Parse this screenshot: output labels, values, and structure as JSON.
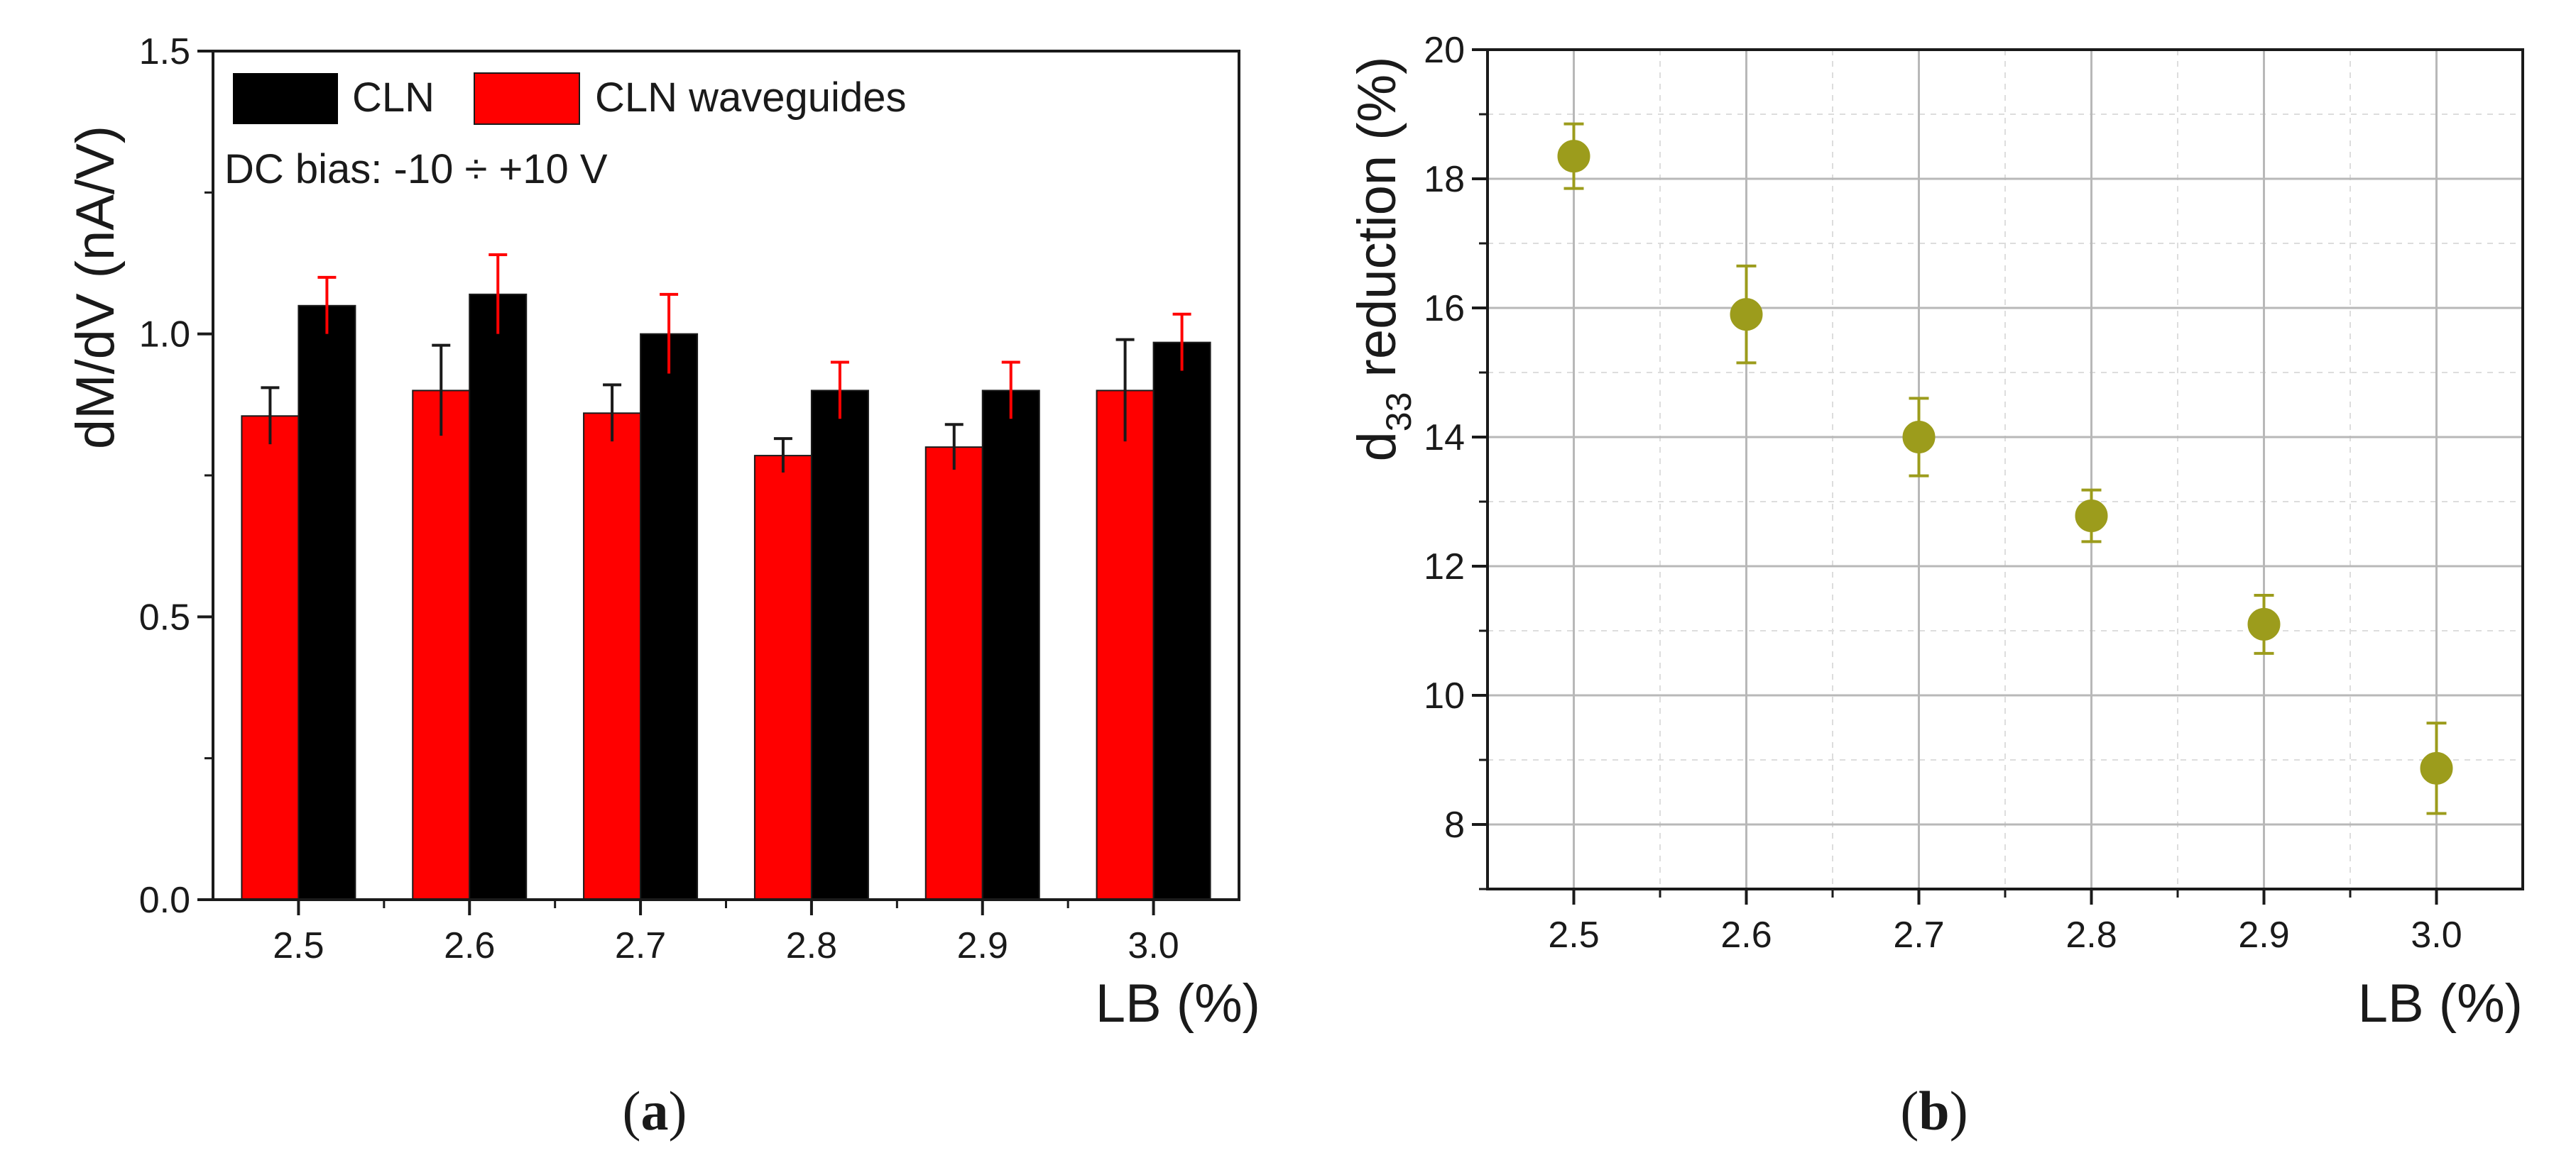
{
  "chart_data": [
    {
      "id": "a",
      "type": "bar",
      "categories": [
        "2.5",
        "2.6",
        "2.7",
        "2.8",
        "2.9",
        "3.0"
      ],
      "series": [
        {
          "name": "CLN waveguides",
          "color": "#ff0000",
          "error_color": "#1a1a1a",
          "values": [
            0.855,
            0.9,
            0.86,
            0.785,
            0.8,
            0.9
          ],
          "errors": [
            0.05,
            0.08,
            0.05,
            0.03,
            0.04,
            0.09
          ]
        },
        {
          "name": "CLN",
          "color": "#000000",
          "error_color": "#ff0000",
          "values": [
            1.05,
            1.07,
            1.0,
            0.9,
            0.9,
            0.985
          ],
          "errors": [
            0.05,
            0.07,
            0.07,
            0.05,
            0.05,
            0.05
          ]
        }
      ],
      "ylim": [
        0,
        1.5
      ],
      "yticks": [
        "0.0",
        "0.5",
        "1.0",
        "1.5"
      ],
      "ylabel": "dM/dV (nA/V)",
      "xlabel": "LB (%)",
      "annotation": "DC bias: -10 ÷ +10 V",
      "legend": [
        {
          "label": "CLN",
          "color": "#000000"
        },
        {
          "label": "CLN waveguides",
          "color": "#ff0000"
        }
      ],
      "panel_label": "a"
    },
    {
      "id": "b",
      "type": "scatter",
      "x": [
        2.5,
        2.6,
        2.7,
        2.8,
        2.9,
        3.0
      ],
      "xticks": [
        "2.5",
        "2.6",
        "2.7",
        "2.8",
        "2.9",
        "3.0"
      ],
      "y": [
        18.35,
        15.9,
        14.0,
        12.78,
        11.1,
        8.87
      ],
      "errors": [
        0.5,
        0.75,
        0.6,
        0.4,
        0.45,
        0.7
      ],
      "color": "#9c9c1c",
      "xlim": [
        2.45,
        3.05
      ],
      "ylim": [
        7,
        20
      ],
      "yticks": [
        "8",
        "10",
        "12",
        "14",
        "16",
        "18",
        "20"
      ],
      "ylabel_main": "d",
      "ylabel_sub": "33",
      "ylabel_rest": " reduction (%)",
      "xlabel": "LB (%)",
      "grid": true,
      "panel_label": "b"
    }
  ]
}
